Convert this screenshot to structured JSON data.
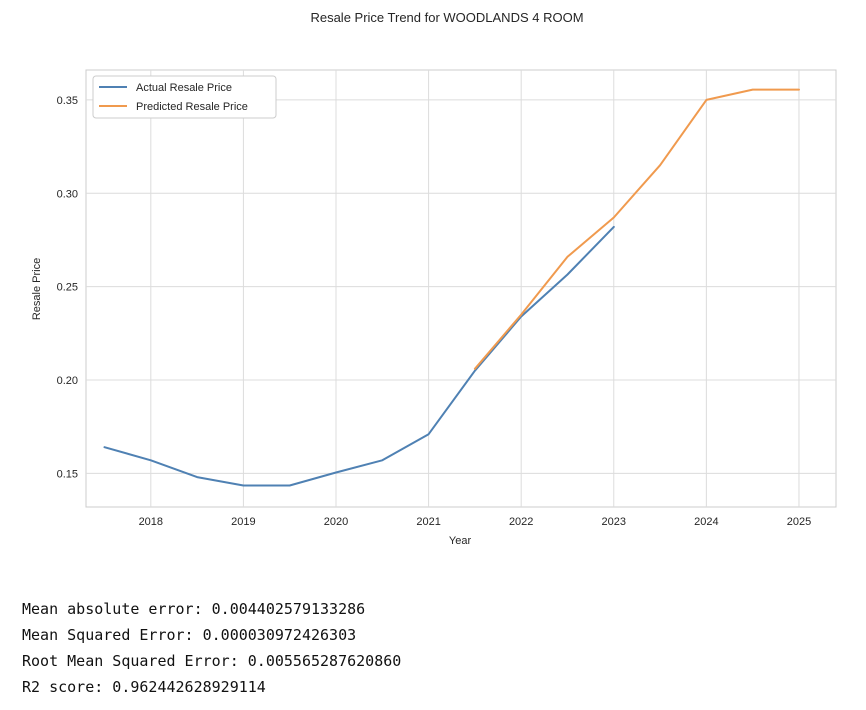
{
  "chart_data": {
    "type": "line",
    "title": "Resale Price Trend for WOODLANDS 4 ROOM",
    "xlabel": "Year",
    "ylabel": "Resale Price",
    "xlim": [
      2017.3,
      2025.4
    ],
    "ylim": [
      0.132,
      0.366
    ],
    "x_ticks": [
      "2018",
      "2019",
      "2020",
      "2021",
      "2022",
      "2023",
      "2024",
      "2025"
    ],
    "y_ticks": [
      "0.15",
      "0.20",
      "0.25",
      "0.30",
      "0.35"
    ],
    "grid": true,
    "legend_position": "top-left",
    "series": [
      {
        "name": "Actual Resale Price",
        "color": "#4f81b3",
        "x": [
          2017.5,
          2018.0,
          2018.5,
          2019.0,
          2019.5,
          2020.0,
          2020.5,
          2021.0,
          2021.5,
          2022.0,
          2022.5,
          2023.0
        ],
        "y": [
          0.164,
          0.157,
          0.148,
          0.1435,
          0.1435,
          0.1505,
          0.157,
          0.171,
          0.205,
          0.234,
          0.2565,
          0.282
        ]
      },
      {
        "name": "Predicted Resale Price",
        "color": "#f09a4e",
        "x": [
          2021.5,
          2022.0,
          2022.5,
          2023.0,
          2023.5,
          2024.0,
          2024.5,
          2025.0
        ],
        "y": [
          0.206,
          0.235,
          0.266,
          0.287,
          0.315,
          0.35,
          0.3555,
          0.3555
        ]
      }
    ]
  },
  "metrics": [
    "Mean absolute error: 0.004402579133286",
    "Mean Squared Error: 0.000030972426303",
    "Root Mean Squared Error: 0.005565287620860",
    "R2 score: 0.962442628929114"
  ]
}
